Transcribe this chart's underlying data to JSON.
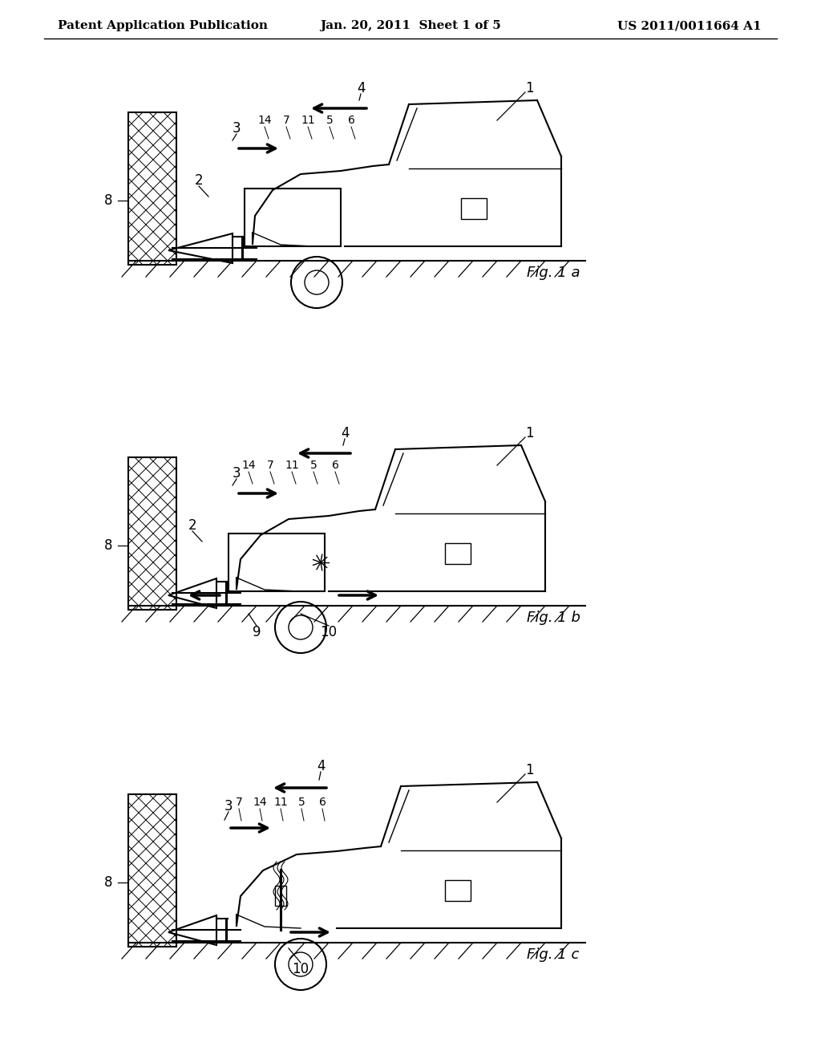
{
  "bg_color": "#ffffff",
  "line_color": "#000000",
  "header_left": "Patent Application Publication",
  "header_mid": "Jan. 20, 2011  Sheet 1 of 5",
  "header_right": "US 2011/0011664 A1"
}
